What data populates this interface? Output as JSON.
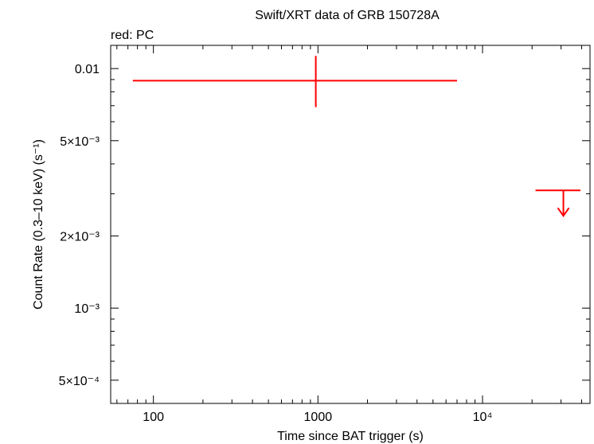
{
  "chart_data": {
    "type": "scatter",
    "title": "Swift/XRT data of GRB 150728A",
    "subtitle": "red: PC",
    "xlabel": "Time since BAT trigger (s)",
    "ylabel": "Count Rate (0.3–10 keV) (s⁻¹)",
    "xscale": "log",
    "yscale": "log",
    "xlim": [
      55,
      45000
    ],
    "ylim": [
      0.0004,
      0.0125
    ],
    "x_ticks": [
      {
        "value": 100,
        "label": "100"
      },
      {
        "value": 1000,
        "label": "1000"
      },
      {
        "value": 10000,
        "label": "10⁴"
      }
    ],
    "y_ticks": [
      {
        "value": 0.01,
        "label": "0.01"
      },
      {
        "value": 0.005,
        "label": "5×10⁻³"
      },
      {
        "value": 0.002,
        "label": "2×10⁻³"
      },
      {
        "value": 0.001,
        "label": "10⁻³"
      },
      {
        "value": 0.0005,
        "label": "5×10⁻⁴"
      }
    ],
    "grid": false,
    "series": [
      {
        "name": "PC",
        "color": "#ff0000",
        "points": [
          {
            "x": 970,
            "x_lo": 75,
            "x_hi": 7000,
            "y": 0.0089,
            "y_lo": 0.0069,
            "y_hi": 0.0113
          }
        ],
        "upper_limits": [
          {
            "x": 31000,
            "x_lo": 21000,
            "x_hi": 45000,
            "y": 0.0031
          }
        ]
      }
    ]
  }
}
